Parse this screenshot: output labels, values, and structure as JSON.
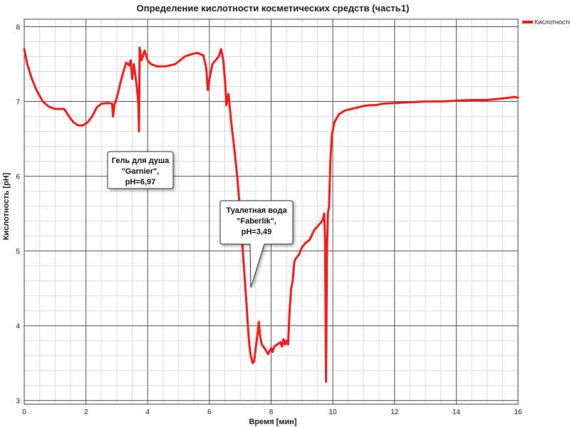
{
  "chart_data": {
    "type": "line",
    "title": "Определение кислотности косметических средств (часть1)",
    "xlabel": "Время [мин]",
    "ylabel": "Кислотность [pH]",
    "xlim": [
      0,
      16
    ],
    "ylim": [
      2.95,
      8.1
    ],
    "x_ticks": [
      "0",
      "2",
      "4",
      "6",
      "8",
      "10",
      "12",
      "14",
      "16"
    ],
    "y_ticks": [
      "3",
      "4",
      "5",
      "6",
      "7",
      "8"
    ],
    "grid": true,
    "legend_position": "top-right",
    "colors": {
      "series": "#ff1a1a",
      "major_grid": "#5a5a5a",
      "minor_grid": "#dcdcdc"
    },
    "series": [
      {
        "name": "Кислотность",
        "points": [
          [
            0.0,
            7.7
          ],
          [
            0.1,
            7.5
          ],
          [
            0.25,
            7.3
          ],
          [
            0.4,
            7.15
          ],
          [
            0.6,
            7.0
          ],
          [
            0.8,
            6.93
          ],
          [
            1.0,
            6.9
          ],
          [
            1.2,
            6.9
          ],
          [
            1.3,
            6.9
          ],
          [
            1.45,
            6.8
          ],
          [
            1.6,
            6.72
          ],
          [
            1.75,
            6.68
          ],
          [
            1.9,
            6.68
          ],
          [
            2.05,
            6.72
          ],
          [
            2.2,
            6.8
          ],
          [
            2.35,
            6.92
          ],
          [
            2.5,
            6.97
          ],
          [
            2.7,
            6.98
          ],
          [
            2.85,
            6.97
          ],
          [
            2.88,
            6.8
          ],
          [
            2.92,
            6.95
          ],
          [
            3.0,
            7.05
          ],
          [
            3.15,
            7.3
          ],
          [
            3.3,
            7.52
          ],
          [
            3.4,
            7.48
          ],
          [
            3.45,
            7.55
          ],
          [
            3.5,
            7.3
          ],
          [
            3.55,
            7.5
          ],
          [
            3.6,
            7.35
          ],
          [
            3.65,
            7.2
          ],
          [
            3.7,
            6.95
          ],
          [
            3.72,
            6.6
          ],
          [
            3.74,
            7.72
          ],
          [
            3.8,
            7.55
          ],
          [
            3.9,
            7.68
          ],
          [
            4.0,
            7.55
          ],
          [
            4.1,
            7.5
          ],
          [
            4.3,
            7.47
          ],
          [
            4.6,
            7.47
          ],
          [
            4.9,
            7.5
          ],
          [
            5.2,
            7.6
          ],
          [
            5.4,
            7.63
          ],
          [
            5.6,
            7.65
          ],
          [
            5.8,
            7.62
          ],
          [
            5.9,
            7.45
          ],
          [
            5.95,
            7.15
          ],
          [
            6.0,
            7.3
          ],
          [
            6.1,
            7.5
          ],
          [
            6.2,
            7.55
          ],
          [
            6.3,
            7.6
          ],
          [
            6.38,
            7.7
          ],
          [
            6.45,
            7.55
          ],
          [
            6.52,
            7.2
          ],
          [
            6.55,
            6.95
          ],
          [
            6.62,
            7.1
          ],
          [
            6.7,
            6.75
          ],
          [
            6.8,
            6.4
          ],
          [
            6.9,
            6.0
          ],
          [
            7.0,
            5.5
          ],
          [
            7.1,
            4.9
          ],
          [
            7.2,
            4.3
          ],
          [
            7.28,
            3.8
          ],
          [
            7.34,
            3.6
          ],
          [
            7.4,
            3.5
          ],
          [
            7.45,
            3.52
          ],
          [
            7.5,
            3.7
          ],
          [
            7.55,
            3.85
          ],
          [
            7.6,
            4.05
          ],
          [
            7.65,
            3.85
          ],
          [
            7.7,
            3.75
          ],
          [
            7.75,
            3.72
          ],
          [
            7.82,
            3.68
          ],
          [
            7.9,
            3.62
          ],
          [
            8.0,
            3.7
          ],
          [
            8.05,
            3.65
          ],
          [
            8.1,
            3.72
          ],
          [
            8.2,
            3.75
          ],
          [
            8.3,
            3.78
          ],
          [
            8.35,
            3.72
          ],
          [
            8.4,
            3.82
          ],
          [
            8.45,
            3.75
          ],
          [
            8.5,
            3.8
          ],
          [
            8.55,
            3.75
          ],
          [
            8.6,
            4.2
          ],
          [
            8.65,
            4.5
          ],
          [
            8.7,
            4.6
          ],
          [
            8.75,
            4.85
          ],
          [
            8.8,
            4.9
          ],
          [
            8.9,
            4.95
          ],
          [
            9.0,
            5.05
          ],
          [
            9.1,
            5.1
          ],
          [
            9.25,
            5.15
          ],
          [
            9.4,
            5.28
          ],
          [
            9.55,
            5.35
          ],
          [
            9.65,
            5.4
          ],
          [
            9.7,
            5.45
          ],
          [
            9.72,
            5.5
          ],
          [
            9.75,
            5.15
          ],
          [
            9.78,
            3.25
          ],
          [
            9.81,
            5.0
          ],
          [
            9.84,
            5.5
          ],
          [
            9.88,
            5.6
          ],
          [
            9.92,
            6.2
          ],
          [
            9.97,
            6.55
          ],
          [
            10.05,
            6.72
          ],
          [
            10.2,
            6.83
          ],
          [
            10.4,
            6.88
          ],
          [
            10.6,
            6.9
          ],
          [
            10.8,
            6.92
          ],
          [
            11.0,
            6.94
          ],
          [
            11.2,
            6.95
          ],
          [
            11.4,
            6.95
          ],
          [
            11.6,
            6.97
          ],
          [
            12.0,
            6.98
          ],
          [
            12.5,
            6.99
          ],
          [
            13.0,
            7.0
          ],
          [
            13.5,
            7.0
          ],
          [
            14.0,
            7.01
          ],
          [
            14.5,
            7.02
          ],
          [
            15.0,
            7.02
          ],
          [
            15.5,
            7.04
          ],
          [
            15.9,
            7.06
          ],
          [
            16.0,
            7.05
          ]
        ]
      }
    ],
    "annotations": [
      {
        "text": [
          "Гель для душа",
          "\"Garnier\",",
          "pH=6,97"
        ]
      },
      {
        "text": [
          "Туалетная вода",
          "\"Faberlik\",",
          "pH=3,49"
        ]
      }
    ]
  }
}
